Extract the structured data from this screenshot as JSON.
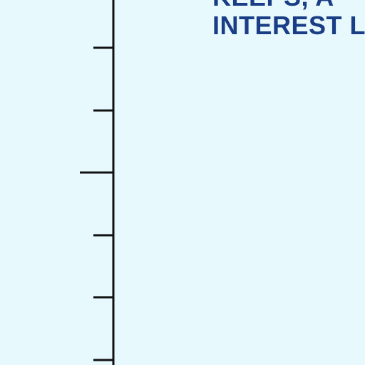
{
  "colors": {
    "background": "#e8f9fd",
    "axis": "#111111",
    "title_text": "#1a3e86"
  },
  "chart_data": {
    "type": "line",
    "title_lines": [
      "KEEPS, A",
      "INTEREST L"
    ],
    "xlabel": "",
    "ylabel": "",
    "y_ticks": [
      {
        "kind": "minor"
      },
      {
        "kind": "minor"
      },
      {
        "kind": "major"
      },
      {
        "kind": "minor"
      },
      {
        "kind": "minor"
      },
      {
        "kind": "minor"
      }
    ],
    "grid": false,
    "series": []
  }
}
